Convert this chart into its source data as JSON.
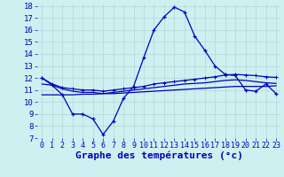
{
  "x": [
    0,
    1,
    2,
    3,
    4,
    5,
    6,
    7,
    8,
    9,
    10,
    11,
    12,
    13,
    14,
    15,
    16,
    17,
    18,
    19,
    20,
    21,
    22,
    23
  ],
  "temp_main": [
    12.0,
    11.4,
    10.6,
    9.0,
    9.0,
    8.6,
    7.3,
    8.4,
    10.3,
    11.3,
    13.7,
    16.0,
    17.1,
    17.9,
    17.5,
    15.5,
    14.3,
    13.0,
    12.3,
    12.2,
    11.0,
    10.9,
    11.5,
    10.7
  ],
  "line_upper": [
    12.0,
    11.5,
    11.2,
    11.1,
    11.0,
    11.0,
    10.9,
    11.0,
    11.1,
    11.2,
    11.3,
    11.5,
    11.6,
    11.7,
    11.8,
    11.9,
    12.0,
    12.1,
    12.25,
    12.3,
    12.25,
    12.2,
    12.1,
    12.05
  ],
  "line_mid": [
    11.5,
    11.4,
    11.1,
    10.9,
    10.8,
    10.8,
    10.7,
    10.8,
    10.9,
    11.0,
    11.1,
    11.2,
    11.3,
    11.4,
    11.5,
    11.55,
    11.6,
    11.7,
    11.8,
    11.85,
    11.8,
    11.7,
    11.6,
    11.55
  ],
  "line_lower": [
    10.6,
    10.6,
    10.6,
    10.6,
    10.65,
    10.65,
    10.7,
    10.7,
    10.75,
    10.8,
    10.85,
    10.9,
    10.95,
    11.0,
    11.05,
    11.1,
    11.15,
    11.2,
    11.25,
    11.3,
    11.3,
    11.3,
    11.3,
    11.35
  ],
  "bg_color": "#cff0f0",
  "grid_color": "#b0d8d8",
  "line_color": "#0000bb",
  "ylabel_min": 7,
  "ylabel_max": 18,
  "xlabel": "Graphe des températures (°c)",
  "xlabel_fontsize": 8,
  "tick_fontsize": 6.5
}
